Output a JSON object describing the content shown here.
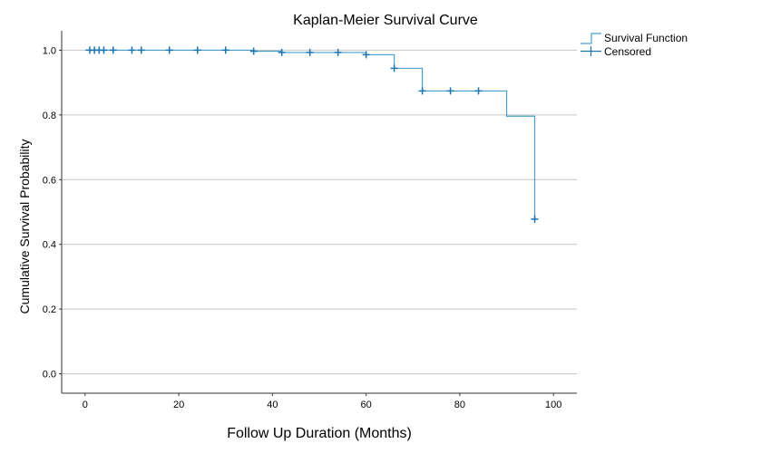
{
  "chart_data": {
    "type": "line",
    "title": "Kaplan-Meier Survival Curve",
    "xlabel": "Follow Up Duration (Months)",
    "ylabel": "Cumulative Survival Probability",
    "xlim": [
      -5,
      105
    ],
    "ylim": [
      -0.06,
      1.06
    ],
    "x_ticks": [
      0,
      20,
      40,
      60,
      80,
      100
    ],
    "x_tick_labels": [
      "0",
      "20",
      "40",
      "60",
      "80",
      "100"
    ],
    "y_ticks": [
      0.0,
      0.2,
      0.4,
      0.6,
      0.8,
      1.0
    ],
    "y_tick_labels": [
      "0.0",
      "0.2",
      "0.4",
      "0.6",
      "0.8",
      "1.0"
    ],
    "grid": "horizontal",
    "legend_position": "top-right",
    "legend": [
      "Survival Function",
      "Censored"
    ],
    "line_color": "#4a9fcf",
    "marker_color": "#1b75b0",
    "series": [
      {
        "name": "Survival Function",
        "x": [
          0,
          36,
          42,
          60,
          66,
          72,
          90,
          96
        ],
        "y": [
          1.0,
          0.997,
          0.993,
          0.986,
          0.944,
          0.874,
          0.796,
          0.478
        ]
      },
      {
        "name": "Censored",
        "x": [
          1,
          2,
          3,
          4,
          6,
          10,
          12,
          18,
          24,
          30,
          36,
          42,
          48,
          54,
          60,
          66,
          72,
          78,
          84,
          96
        ],
        "y": [
          1.0,
          1.0,
          1.0,
          1.0,
          1.0,
          1.0,
          1.0,
          1.0,
          1.0,
          1.0,
          0.997,
          0.993,
          0.993,
          0.993,
          0.986,
          0.944,
          0.874,
          0.874,
          0.874,
          0.478
        ]
      }
    ]
  }
}
